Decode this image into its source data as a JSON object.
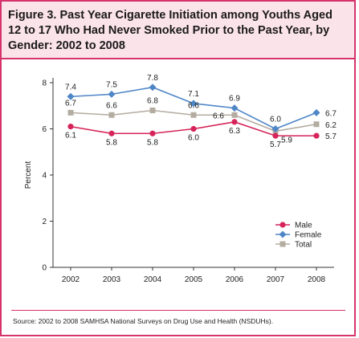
{
  "figure": {
    "title": "Figure 3. Past Year Cigarette Initiation among Youths Aged 12 to 17 Who Had Never Smoked Prior to the Past Year, by Gender: 2002 to 2008",
    "source": "Source: 2002 to 2008 SAMHSA National Surveys on Drug Use and Health (NSDUHs)."
  },
  "colors": {
    "accent": "#d6336c",
    "title_bg": "#fbe3ea",
    "male": "#d6245a",
    "female": "#4f86c6",
    "total": "#b4aca0"
  },
  "chart_data": {
    "type": "line",
    "x": [
      "2002",
      "2003",
      "2004",
      "2005",
      "2006",
      "2007",
      "2008"
    ],
    "ylabel": "Percent",
    "ylim": [
      0,
      8
    ],
    "yticks": [
      "0",
      "2",
      "4",
      "6",
      "8"
    ],
    "grid": false,
    "legend_position": "bottom-right",
    "series": [
      {
        "name": "Male",
        "values": [
          6.1,
          5.8,
          5.8,
          6.0,
          6.3,
          5.7,
          5.7
        ],
        "labels": [
          "6.1",
          "5.8",
          "5.8",
          "6.0",
          "6.3",
          "5.7",
          "5.7"
        ],
        "color": "#d6245a",
        "marker": "circle"
      },
      {
        "name": "Female",
        "values": [
          7.4,
          7.5,
          7.8,
          7.1,
          6.9,
          6.0,
          6.7
        ],
        "labels": [
          "7.4",
          "7.5",
          "7.8",
          "7.1",
          "6.9",
          "6.0",
          "6.7"
        ],
        "color": "#4f86c6",
        "marker": "diamond"
      },
      {
        "name": "Total",
        "values": [
          6.7,
          6.6,
          6.8,
          6.6,
          6.6,
          5.9,
          6.2
        ],
        "labels": [
          "6.7",
          "6.6",
          "6.8",
          "6.6",
          "6.6",
          "5.9",
          "6.2"
        ],
        "color": "#b4aca0",
        "marker": "square"
      }
    ]
  }
}
